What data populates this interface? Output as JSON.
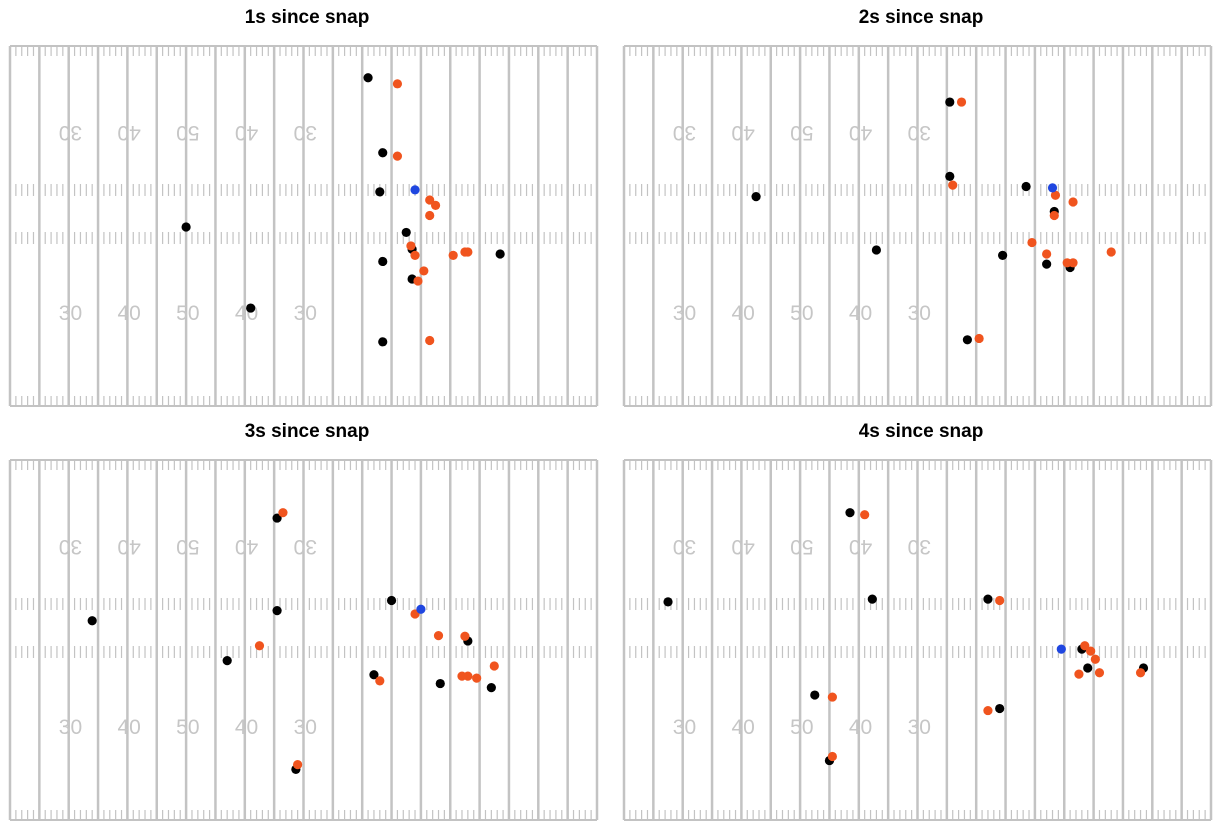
{
  "colors": {
    "field_line": "#c3c3c3",
    "yard_number": "#c6c6c6",
    "offense": "#000000",
    "defense": "#f0541e",
    "football": "#1f46e0"
  },
  "chart_data": [
    {
      "type": "scatter",
      "title": "1s since snap",
      "x_range": [
        0,
        100
      ],
      "y_range": [
        0,
        53.3
      ],
      "field_numbers": [
        "30",
        "40",
        "50",
        "40",
        "30"
      ],
      "series": [
        {
          "color_key": "offense",
          "points": [
            [
              30,
              26.5
            ],
            [
              41,
              14.5
            ],
            [
              61,
              48.6
            ],
            [
              63.5,
              37.5
            ],
            [
              63,
              31.7
            ],
            [
              63.5,
              21.4
            ],
            [
              63.5,
              9.5
            ],
            [
              67.5,
              25.7
            ],
            [
              68.5,
              23.2
            ],
            [
              68.5,
              18.8
            ],
            [
              83.5,
              22.5
            ]
          ]
        },
        {
          "color_key": "defense",
          "points": [
            [
              66,
              47.7
            ],
            [
              66,
              37
            ],
            [
              68.3,
              23.7
            ],
            [
              69,
              22.3
            ],
            [
              69.5,
              18.5
            ],
            [
              70.5,
              20
            ],
            [
              71.5,
              30.5
            ],
            [
              71.5,
              28.2
            ],
            [
              71.5,
              9.7
            ],
            [
              72.5,
              29.7
            ],
            [
              75.5,
              22.3
            ],
            [
              77.5,
              22.8
            ],
            [
              78,
              22.8
            ]
          ]
        },
        {
          "color_key": "football",
          "points": [
            [
              69,
              32
            ]
          ]
        }
      ]
    },
    {
      "type": "scatter",
      "title": "2s since snap",
      "x_range": [
        0,
        100
      ],
      "y_range": [
        0,
        53.3
      ],
      "field_numbers": [
        "30",
        "40",
        "50",
        "40",
        "30"
      ],
      "series": [
        {
          "color_key": "offense",
          "points": [
            [
              22.5,
              31
            ],
            [
              43,
              23.1
            ],
            [
              55.5,
              45
            ],
            [
              55.5,
              34
            ],
            [
              58.5,
              9.8
            ],
            [
              64.5,
              22.3
            ],
            [
              68.5,
              32.5
            ],
            [
              72,
              21
            ],
            [
              73.3,
              28.8
            ],
            [
              76,
              20.5
            ]
          ]
        },
        {
          "color_key": "defense",
          "points": [
            [
              57.5,
              45
            ],
            [
              56,
              32.7
            ],
            [
              60.5,
              10
            ],
            [
              69.5,
              24.2
            ],
            [
              72,
              22.5
            ],
            [
              73.5,
              31.2
            ],
            [
              75.5,
              21.2
            ],
            [
              76.5,
              21.2
            ],
            [
              73.3,
              28.2
            ],
            [
              76.5,
              30.2
            ],
            [
              83,
              22.8
            ]
          ]
        },
        {
          "color_key": "football",
          "points": [
            [
              73,
              32.3
            ]
          ]
        }
      ]
    },
    {
      "type": "scatter",
      "title": "3s since snap",
      "x_range": [
        0,
        100
      ],
      "y_range": [
        0,
        53.3
      ],
      "field_numbers": [
        "30",
        "40",
        "50",
        "40",
        "30"
      ],
      "series": [
        {
          "color_key": "offense",
          "points": [
            [
              14,
              29.5
            ],
            [
              37,
              23.6
            ],
            [
              45.5,
              44.7
            ],
            [
              45.5,
              31
            ],
            [
              48.7,
              7.5
            ],
            [
              65,
              32.5
            ],
            [
              62,
              21.5
            ],
            [
              73.3,
              20.2
            ],
            [
              78,
              26.5
            ],
            [
              82,
              19.6
            ]
          ]
        },
        {
          "color_key": "defense",
          "points": [
            [
              46.5,
              45.5
            ],
            [
              42.5,
              25.8
            ],
            [
              49,
              8.2
            ],
            [
              69,
              30.5
            ],
            [
              63,
              20.6
            ],
            [
              73,
              27.3
            ],
            [
              77.5,
              27.2
            ],
            [
              78,
              21.3
            ],
            [
              77,
              21.3
            ],
            [
              79.5,
              21
            ],
            [
              82.5,
              22.8
            ]
          ]
        },
        {
          "color_key": "football",
          "points": [
            [
              70,
              31.2
            ]
          ]
        }
      ]
    },
    {
      "type": "scatter",
      "title": "4s since snap",
      "x_range": [
        0,
        100
      ],
      "y_range": [
        0,
        53.3
      ],
      "field_numbers": [
        "30",
        "40",
        "50",
        "40",
        "30"
      ],
      "series": [
        {
          "color_key": "offense",
          "points": [
            [
              7.5,
              32.3
            ],
            [
              32.5,
              18.5
            ],
            [
              35,
              8.8
            ],
            [
              38.5,
              45.5
            ],
            [
              42.3,
              32.7
            ],
            [
              62,
              32.7
            ],
            [
              64,
              16.5
            ],
            [
              78,
              25.3
            ],
            [
              79,
              22.5
            ],
            [
              88.5,
              22.5
            ]
          ]
        },
        {
          "color_key": "defense",
          "points": [
            [
              35.5,
              9.4
            ],
            [
              35.5,
              18.2
            ],
            [
              41,
              45.2
            ],
            [
              64,
              32.5
            ],
            [
              62,
              16.2
            ],
            [
              77.5,
              21.6
            ],
            [
              78.5,
              25.8
            ],
            [
              79.5,
              25
            ],
            [
              80.3,
              23.8
            ],
            [
              81,
              21.8
            ],
            [
              88,
              21.8
            ]
          ]
        },
        {
          "color_key": "football",
          "points": [
            [
              74.5,
              25.3
            ]
          ]
        }
      ]
    }
  ]
}
